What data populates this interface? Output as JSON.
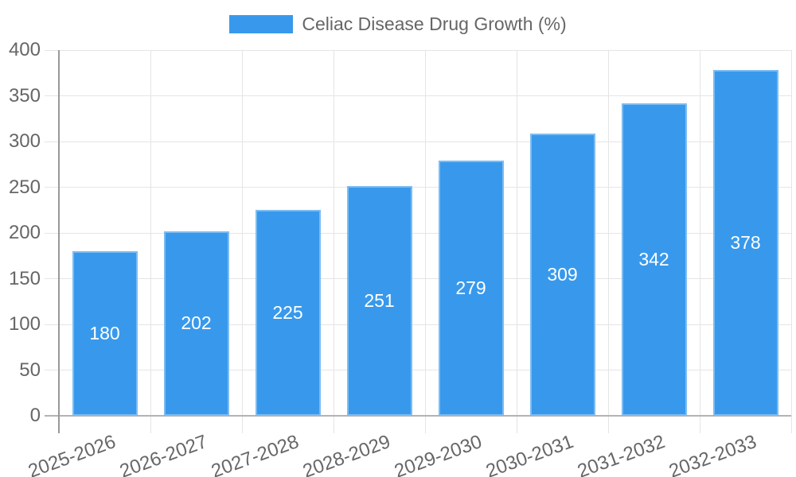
{
  "chart_data": {
    "type": "bar",
    "title": "Celiac Disease Drug Growth (%)",
    "legend_label": "Celiac Disease Drug Growth (%)",
    "legend_position": "top",
    "categories": [
      "2025-2026",
      "2026-2027",
      "2027-2028",
      "2028-2029",
      "2029-2030",
      "2030-2031",
      "2031-2032",
      "2032-2033"
    ],
    "values": [
      180,
      202,
      225,
      251,
      279,
      309,
      342,
      378
    ],
    "data_labels": [
      "180",
      "202",
      "225",
      "251",
      "279",
      "309",
      "342",
      "378"
    ],
    "xlabel": "",
    "ylabel": "",
    "ylim": [
      0,
      400
    ],
    "yticks": [
      0,
      50,
      100,
      150,
      200,
      250,
      300,
      350,
      400
    ],
    "grid": true,
    "x_tick_rotation_deg": -20,
    "colors": {
      "bar": "#3899ec",
      "bar_label": "#ffffff",
      "axis_text": "#666666",
      "gridline": "#e5e5e5",
      "y_axis_line": "#999999",
      "x_axis_line": "#b3b3b3",
      "background": "#ffffff"
    }
  }
}
